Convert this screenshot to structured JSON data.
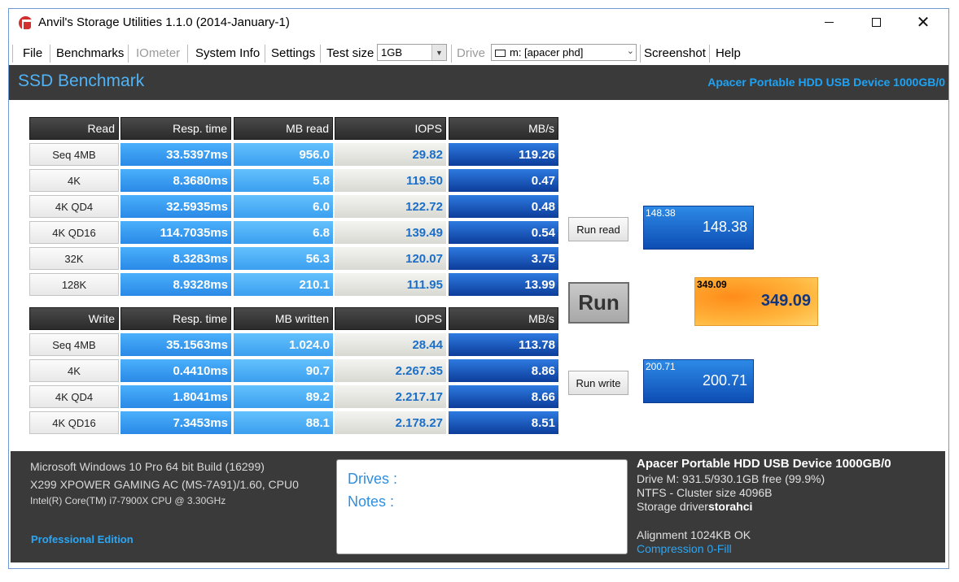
{
  "window": {
    "title": "Anvil's Storage Utilities 1.1.0 (2014-January-1)",
    "controls": {
      "minimize": "",
      "maximize": "",
      "close": "✕"
    }
  },
  "menu": {
    "file": "File",
    "benchmarks": "Benchmarks",
    "iometer": "IOmeter",
    "system_info": "System Info",
    "settings": "Settings",
    "test_size_label": "Test size",
    "test_size_value": "1GB",
    "drive_label": "Drive",
    "drive_value": "m: [apacer phd]",
    "screenshot": "Screenshot",
    "help": "Help"
  },
  "header": {
    "title": "SSD Benchmark",
    "device": "Apacer Portable HDD USB Device 1000GB/0"
  },
  "read": {
    "headers": [
      "Read",
      "Resp. time",
      "MB read",
      "IOPS",
      "MB/s"
    ],
    "rows": [
      {
        "label": "Seq 4MB",
        "resp": "33.5397ms",
        "mb": "956.0",
        "iops": "29.82",
        "mbs": "119.26"
      },
      {
        "label": "4K",
        "resp": "8.3680ms",
        "mb": "5.8",
        "iops": "119.50",
        "mbs": "0.47"
      },
      {
        "label": "4K QD4",
        "resp": "32.5935ms",
        "mb": "6.0",
        "iops": "122.72",
        "mbs": "0.48"
      },
      {
        "label": "4K QD16",
        "resp": "114.7035ms",
        "mb": "6.8",
        "iops": "139.49",
        "mbs": "0.54"
      },
      {
        "label": "32K",
        "resp": "8.3283ms",
        "mb": "56.3",
        "iops": "120.07",
        "mbs": "3.75"
      },
      {
        "label": "128K",
        "resp": "8.9328ms",
        "mb": "210.1",
        "iops": "111.95",
        "mbs": "13.99"
      }
    ]
  },
  "write": {
    "headers": [
      "Write",
      "Resp. time",
      "MB written",
      "IOPS",
      "MB/s"
    ],
    "rows": [
      {
        "label": "Seq 4MB",
        "resp": "35.1563ms",
        "mb": "1.024.0",
        "iops": "28.44",
        "mbs": "113.78"
      },
      {
        "label": "4K",
        "resp": "0.4410ms",
        "mb": "90.7",
        "iops": "2.267.35",
        "mbs": "8.86"
      },
      {
        "label": "4K QD4",
        "resp": "1.8041ms",
        "mb": "89.2",
        "iops": "2.217.17",
        "mbs": "8.66"
      },
      {
        "label": "4K QD16",
        "resp": "7.3453ms",
        "mb": "88.1",
        "iops": "2.178.27",
        "mbs": "8.51"
      }
    ]
  },
  "buttons": {
    "run_read": "Run read",
    "run": "Run",
    "run_write": "Run write"
  },
  "scores": {
    "read_small": "148.38",
    "read_big": "148.38",
    "total_small": "349.09",
    "total_big": "349.09",
    "write_small": "200.71",
    "write_big": "200.71"
  },
  "footer": {
    "os": "Microsoft Windows 10 Pro 64 bit Build (16299)",
    "board": "X299 XPOWER GAMING AC (MS-7A91)/1.60, CPU0",
    "cpu": "Intel(R) Core(TM) i7-7900X CPU @ 3.30GHz",
    "edition": "Professional Edition",
    "drives_label": "Drives :",
    "notes_label": "Notes :",
    "device_title": "Apacer Portable HDD USB Device 1000GB/0",
    "drive_free": "Drive M: 931.5/930.1GB free (99.9%)",
    "fs": "NTFS - Cluster size 4096B",
    "storage_driver_label": "Storage driver",
    "storage_driver_value": "storahci",
    "alignment": "Alignment 1024KB OK",
    "compression": "Compression 0-Fill"
  },
  "colors": {
    "header_band": "#3a3a3a",
    "accent_blue": "#1ea3f4",
    "total_orange": "#ff8c1a"
  }
}
